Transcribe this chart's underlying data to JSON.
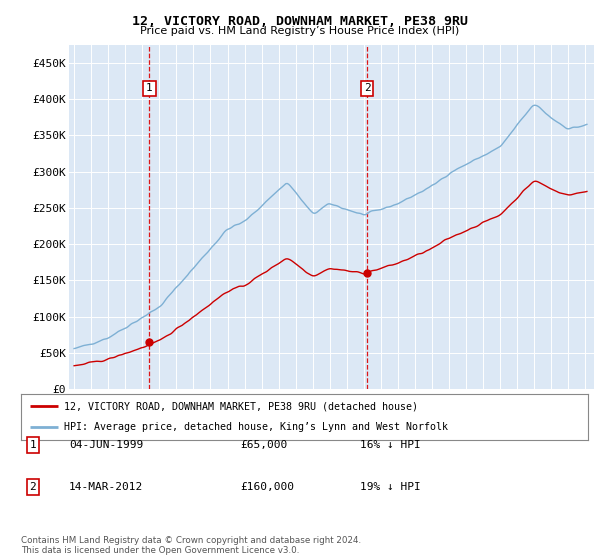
{
  "title": "12, VICTORY ROAD, DOWNHAM MARKET, PE38 9RU",
  "subtitle": "Price paid vs. HM Land Registry’s House Price Index (HPI)",
  "legend_line1": "12, VICTORY ROAD, DOWNHAM MARKET, PE38 9RU (detached house)",
  "legend_line2": "HPI: Average price, detached house, King’s Lynn and West Norfolk",
  "footnote": "Contains HM Land Registry data © Crown copyright and database right 2024.\nThis data is licensed under the Open Government Licence v3.0.",
  "sale1_label": "1",
  "sale1_date": "04-JUN-1999",
  "sale1_price": "£65,000",
  "sale1_hpi": "16% ↓ HPI",
  "sale2_label": "2",
  "sale2_date": "14-MAR-2012",
  "sale2_price": "£160,000",
  "sale2_hpi": "19% ↓ HPI",
  "sale1_x": 1999.42,
  "sale1_y": 65000,
  "sale2_x": 2012.2,
  "sale2_y": 160000,
  "hpi_color": "#7eb0d4",
  "price_color": "#cc0000",
  "background_color": "#dce8f5",
  "plot_bg": "#dce8f5",
  "ylim": [
    0,
    475000
  ],
  "yticks": [
    0,
    50000,
    100000,
    150000,
    200000,
    250000,
    300000,
    350000,
    400000,
    450000
  ],
  "ytick_labels": [
    "£0",
    "£50K",
    "£100K",
    "£150K",
    "£200K",
    "£250K",
    "£300K",
    "£350K",
    "£400K",
    "£450K"
  ],
  "xlim_start": 1994.7,
  "xlim_end": 2025.5
}
